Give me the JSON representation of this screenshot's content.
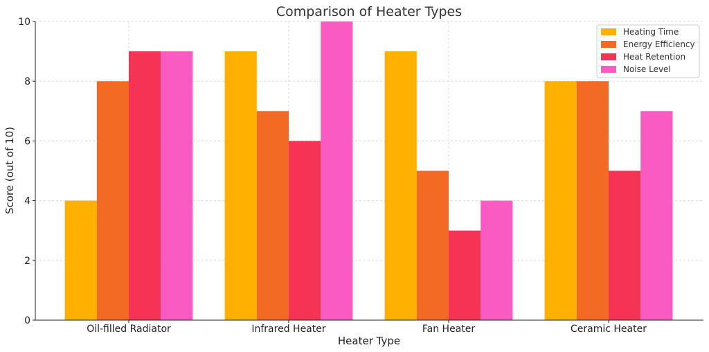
{
  "chart_data": {
    "type": "bar",
    "title": "Comparison of Heater Types",
    "xlabel": "Heater Type",
    "ylabel": "Score (out of 10)",
    "categories": [
      "Oil-filled Radiator",
      "Infrared Heater",
      "Fan Heater",
      "Ceramic Heater"
    ],
    "series": [
      {
        "name": "Heating Time",
        "values": [
          4,
          9,
          9,
          8
        ],
        "color": "#FFB000"
      },
      {
        "name": "Energy Efficiency",
        "values": [
          8,
          7,
          5,
          8
        ],
        "color": "#F26A24"
      },
      {
        "name": "Heat Retention",
        "values": [
          9,
          6,
          3,
          5
        ],
        "color": "#F43355"
      },
      {
        "name": "Noise Level",
        "values": [
          9,
          10,
          4,
          7
        ],
        "color": "#F95BC2"
      }
    ],
    "ylim": [
      0,
      10
    ],
    "yticks": [
      0,
      2,
      4,
      6,
      8,
      10
    ],
    "grid": true,
    "legend_position": "top-right"
  }
}
